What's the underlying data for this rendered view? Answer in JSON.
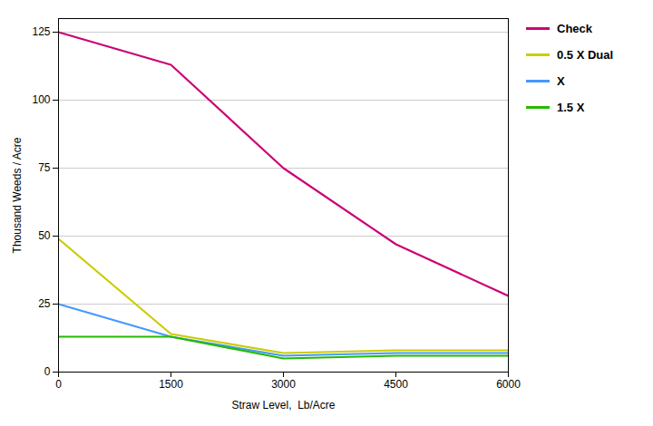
{
  "chart_data": {
    "type": "line",
    "xlabel": "Straw Level,  Lb/Acre",
    "ylabel": "Thousand Weeds / Acre",
    "x": [
      0,
      1500,
      3000,
      4500,
      6000
    ],
    "series": [
      {
        "name": "Check",
        "color": "#cc0077",
        "values": [
          125,
          113,
          75,
          47,
          28
        ]
      },
      {
        "name": "0.5 X Dual",
        "color": "#cccc00",
        "values": [
          49,
          14,
          7,
          8,
          8
        ]
      },
      {
        "name": "X",
        "color": "#4499ff",
        "values": [
          25,
          13,
          6,
          7,
          7
        ]
      },
      {
        "name": "1.5 X",
        "color": "#22bb00",
        "values": [
          13,
          13,
          5,
          6,
          6
        ]
      }
    ],
    "xlim": [
      0,
      6000
    ],
    "ylim": [
      0,
      130
    ],
    "xticks": [
      0,
      1500,
      3000,
      4500,
      6000
    ],
    "yticks": [
      0,
      25,
      50,
      75,
      100,
      125
    ],
    "grid": "y",
    "legend": "right"
  }
}
